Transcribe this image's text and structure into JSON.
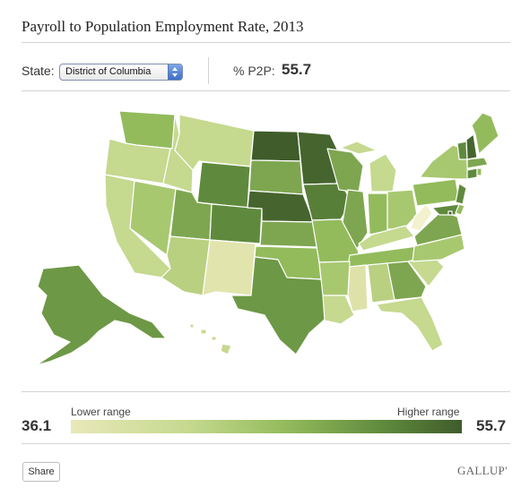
{
  "title": "Payroll to Population Employment Rate, 2013",
  "controls": {
    "state_label": "State:",
    "selected_state": "District of Columbia",
    "metric_label": "% P2P:",
    "metric_value": "55.7"
  },
  "legend": {
    "lower_label": "Lower range",
    "higher_label": "Higher range",
    "min_value": "36.1",
    "max_value": "55.7",
    "colors": [
      "#e8e8b8",
      "#c5d98f",
      "#93bb5c",
      "#5f8a3d",
      "#3f5c2a"
    ]
  },
  "map_data": {
    "type": "choropleth",
    "region": "United States",
    "highlighted": "District of Columbia",
    "shade_levels": {
      "lightest": [
        "West Virginia",
        "Mississippi",
        "New Mexico"
      ],
      "light": [
        "Montana",
        "Idaho",
        "Oregon",
        "California",
        "Arizona",
        "Florida",
        "Michigan",
        "Kentucky",
        "Alabama",
        "South Carolina",
        "Louisiana",
        "Hawaii"
      ],
      "medium": [
        "Washington",
        "Nevada",
        "Utah",
        "Oklahoma",
        "Missouri",
        "Arkansas",
        "Tennessee",
        "North Carolina",
        "Georgia",
        "Ohio",
        "Indiana",
        "Illinois",
        "Pennsylvania",
        "New York",
        "Maine",
        "Kansas",
        "South Dakota",
        "Wisconsin",
        "Virginia",
        "Delaware",
        "Rhode Island",
        "Massachusetts"
      ],
      "dark": [
        "Wyoming",
        "Colorado",
        "Texas",
        "Iowa",
        "Alaska",
        "Minnesota",
        "Vermont",
        "New Jersey",
        "Connecticut",
        "Maryland"
      ],
      "darkest": [
        "North Dakota",
        "Nebraska",
        "New Hampshire",
        "District of Columbia"
      ]
    }
  },
  "share_label": "Share",
  "brand": "GALLUP'"
}
